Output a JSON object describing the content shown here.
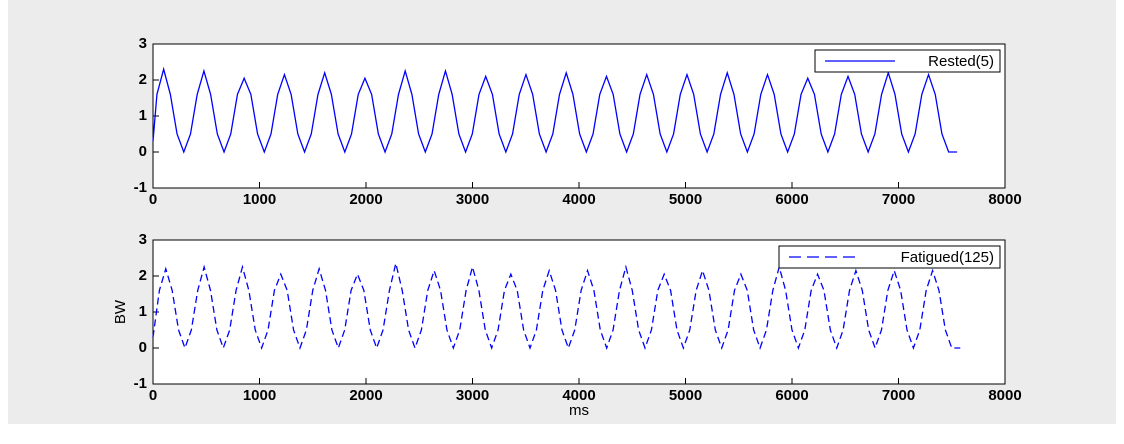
{
  "chart_data": [
    {
      "type": "line",
      "x": [
        0,
        37,
        100,
        163,
        226,
        289,
        352,
        415,
        478,
        541,
        604,
        667,
        730,
        793,
        856,
        919,
        982,
        1045,
        1108,
        1171,
        1234,
        1297,
        1360,
        1423,
        1486,
        1549,
        1612,
        1675,
        1738,
        1801,
        1864,
        1927,
        1990,
        2053,
        2116,
        2179,
        2242,
        2305,
        2368,
        2431,
        2494,
        2557,
        2620,
        2683,
        2746,
        2809,
        2872,
        2935,
        2998,
        3061,
        3124,
        3187,
        3250,
        3313,
        3376,
        3439,
        3502,
        3565,
        3628,
        3691,
        3754,
        3817,
        3880,
        3943,
        4006,
        4069,
        4132,
        4195,
        4258,
        4321,
        4384,
        4447,
        4510,
        4573,
        4636,
        4699,
        4762,
        4825,
        4888,
        4951,
        5014,
        5077,
        5140,
        5203,
        5266,
        5329,
        5392,
        5455,
        5518,
        5581,
        5644,
        5707,
        5770,
        5833,
        5896,
        5959,
        6022,
        6085,
        6148,
        6211,
        6274,
        6337,
        6400,
        6463,
        6526,
        6589,
        6652,
        6715,
        6778,
        6841,
        6904,
        6967,
        7030,
        7093,
        7156,
        7219,
        7282,
        7345,
        7408,
        7471,
        7550
      ],
      "series": [
        {
          "name": "Rested(5)",
          "color": "#0000ff",
          "line_style": "solid",
          "values": [
            0.3,
            1.6,
            2.3,
            1.6,
            0.5,
            0,
            0.5,
            1.6,
            2.25,
            1.6,
            0.5,
            0,
            0.5,
            1.6,
            2.05,
            1.6,
            0.5,
            0,
            0.5,
            1.6,
            2.15,
            1.6,
            0.5,
            0,
            0.5,
            1.6,
            2.2,
            1.6,
            0.5,
            0,
            0.5,
            1.6,
            2.05,
            1.6,
            0.5,
            0,
            0.5,
            1.6,
            2.25,
            1.6,
            0.5,
            0,
            0.5,
            1.6,
            2.25,
            1.6,
            0.5,
            0,
            0.5,
            1.6,
            2.1,
            1.6,
            0.5,
            0,
            0.5,
            1.6,
            2.15,
            1.6,
            0.5,
            0,
            0.5,
            1.6,
            2.2,
            1.6,
            0.5,
            0,
            0.5,
            1.6,
            2.1,
            1.6,
            0.5,
            0,
            0.5,
            1.6,
            2.15,
            1.6,
            0.5,
            0,
            0.5,
            1.6,
            2.15,
            1.6,
            0.5,
            0,
            0.5,
            1.6,
            2.2,
            1.6,
            0.5,
            0,
            0.5,
            1.6,
            2.15,
            1.6,
            0.5,
            0,
            0.5,
            1.6,
            2.05,
            1.6,
            0.5,
            0,
            0.5,
            1.6,
            2.1,
            1.6,
            0.5,
            0,
            0.5,
            1.6,
            2.2,
            1.6,
            0.5,
            0,
            0.5,
            1.6,
            2.15,
            1.6,
            0.5,
            0,
            0
          ]
        }
      ],
      "xlim": [
        0,
        8000
      ],
      "xticks": [
        0,
        1000,
        2000,
        3000,
        4000,
        5000,
        6000,
        7000,
        8000
      ],
      "ylim": [
        -1,
        3
      ],
      "yticks": [
        -1,
        0,
        1,
        2,
        3
      ],
      "legend": "upper right"
    },
    {
      "type": "line",
      "x": [
        0,
        60,
        120,
        180,
        240,
        300,
        360,
        420,
        480,
        540,
        600,
        660,
        720,
        780,
        840,
        900,
        960,
        1020,
        1080,
        1140,
        1200,
        1260,
        1320,
        1380,
        1440,
        1500,
        1560,
        1620,
        1680,
        1740,
        1800,
        1860,
        1920,
        1980,
        2040,
        2100,
        2160,
        2220,
        2280,
        2340,
        2400,
        2460,
        2520,
        2580,
        2640,
        2700,
        2760,
        2820,
        2880,
        2940,
        3000,
        3060,
        3120,
        3180,
        3240,
        3300,
        3360,
        3420,
        3480,
        3540,
        3600,
        3660,
        3720,
        3780,
        3840,
        3900,
        3960,
        4020,
        4080,
        4140,
        4200,
        4260,
        4320,
        4380,
        4440,
        4500,
        4560,
        4620,
        4680,
        4740,
        4800,
        4860,
        4920,
        4980,
        5040,
        5100,
        5160,
        5220,
        5280,
        5340,
        5400,
        5460,
        5520,
        5580,
        5640,
        5700,
        5760,
        5820,
        5880,
        5940,
        6000,
        6060,
        6120,
        6180,
        6240,
        6300,
        6360,
        6420,
        6480,
        6540,
        6600,
        6660,
        6720,
        6780,
        6840,
        6900,
        6960,
        7020,
        7080,
        7140,
        7200,
        7260,
        7320,
        7380,
        7440,
        7500,
        7580
      ],
      "series": [
        {
          "name": "Fatigued(125)",
          "color": "#0000ff",
          "line_style": "dashed",
          "values": [
            0.3,
            1.6,
            2.2,
            1.6,
            0.5,
            0,
            0.5,
            1.6,
            2.25,
            1.6,
            0.5,
            0,
            0.5,
            1.6,
            2.25,
            1.6,
            0.5,
            0,
            0.5,
            1.6,
            2.05,
            1.6,
            0.5,
            0,
            0.5,
            1.6,
            2.2,
            1.6,
            0.5,
            0,
            0.5,
            1.6,
            2.05,
            1.6,
            0.5,
            0,
            0.5,
            1.6,
            2.35,
            1.6,
            0.5,
            0,
            0.5,
            1.6,
            2.15,
            1.6,
            0.5,
            0,
            0.5,
            1.6,
            2.25,
            1.6,
            0.5,
            0,
            0.5,
            1.6,
            2.05,
            1.6,
            0.5,
            0,
            0.5,
            1.6,
            2.15,
            1.6,
            0.5,
            0,
            0.5,
            1.6,
            2.15,
            1.6,
            0.5,
            0,
            0.5,
            1.6,
            2.25,
            1.6,
            0.5,
            0,
            0.5,
            1.6,
            2.05,
            1.6,
            0.5,
            0,
            0.5,
            1.6,
            2.15,
            1.6,
            0.5,
            0,
            0.5,
            1.6,
            2.05,
            1.6,
            0.5,
            0,
            0.5,
            1.6,
            2.25,
            1.6,
            0.5,
            0,
            0.5,
            1.6,
            2.05,
            1.6,
            0.5,
            0,
            0.5,
            1.6,
            2.15,
            1.6,
            0.5,
            0,
            0.5,
            1.6,
            2.15,
            1.6,
            0.5,
            0,
            0.5,
            1.6,
            2.15,
            1.6,
            0.5,
            0,
            0
          ]
        }
      ],
      "xlim": [
        0,
        8000
      ],
      "xticks": [
        0,
        1000,
        2000,
        3000,
        4000,
        5000,
        6000,
        7000,
        8000
      ],
      "ylim": [
        -1,
        3
      ],
      "yticks": [
        -1,
        0,
        1,
        2,
        3
      ],
      "legend": "upper right",
      "xlabel": "ms",
      "ylabel": "BW"
    }
  ]
}
